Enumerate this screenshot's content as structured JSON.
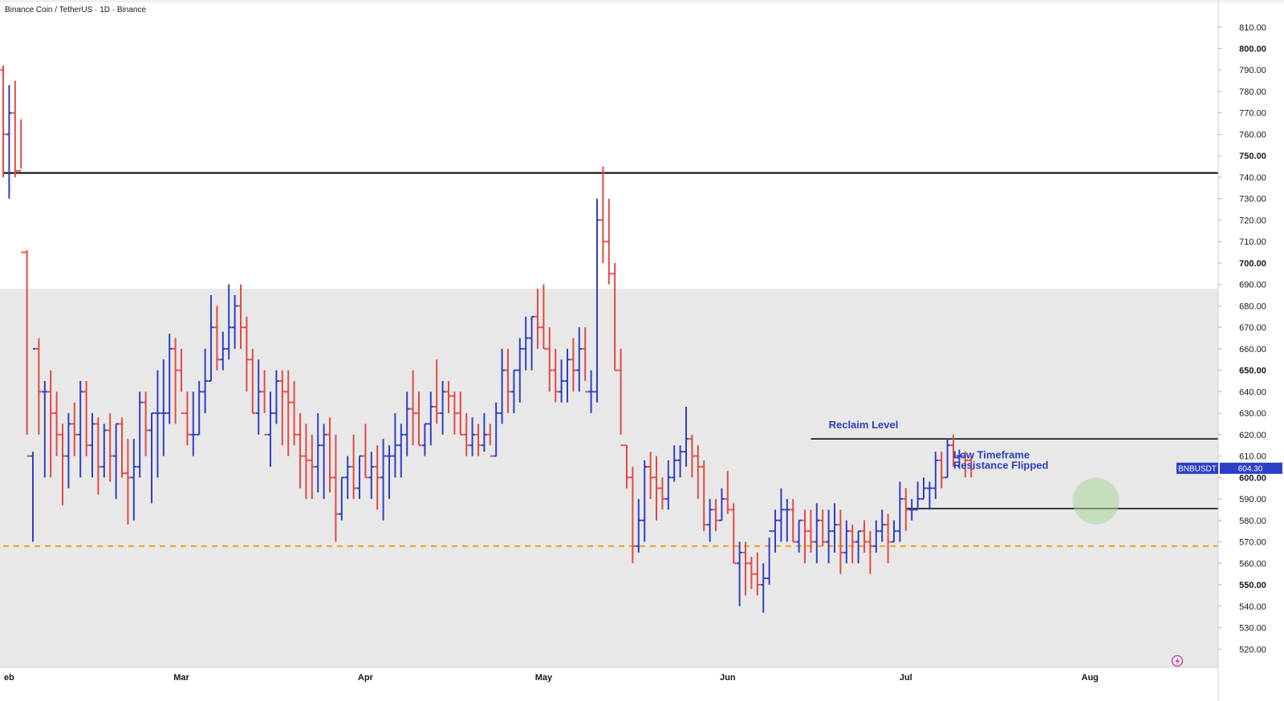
{
  "header": {
    "title": "Binance Coin / TetherUS · 1D · Binance"
  },
  "colors": {
    "up": "#2f3fc4",
    "down": "#e24a43",
    "zone": "#e8e8e8",
    "support": "#f0a020",
    "level": "#000000",
    "tag": "#2b3fc9",
    "highlight": "#a9d49a"
  },
  "icons": {
    "bottom_right": "lightning-icon"
  },
  "chart_data": {
    "type": "ohlc",
    "interval": "1D",
    "ylim": [
      511.5,
      821.5
    ],
    "y_ticks": [
      520,
      530,
      540,
      550,
      560,
      570,
      580,
      590,
      600,
      610,
      620,
      630,
      640,
      650,
      660,
      670,
      680,
      690,
      700,
      710,
      720,
      730,
      740,
      750,
      760,
      770,
      780,
      790,
      800,
      810
    ],
    "y_tick_labels": [
      "520.00",
      "530.00",
      "540.00",
      "550.00",
      "560.00",
      "570.00",
      "580.00",
      "590.00",
      "600.00",
      "610.00",
      "620.00",
      "630.00",
      "640.00",
      "650.00",
      "660.00",
      "670.00",
      "680.00",
      "690.00",
      "700.00",
      "710.00",
      "720.00",
      "730.00",
      "740.00",
      "750.00",
      "760.00",
      "770.00",
      "780.00",
      "790.00",
      "800.00",
      "810.00"
    ],
    "bold_ticks": [
      550,
      600,
      650,
      700,
      750,
      800
    ],
    "x_months": [
      {
        "label": "eb",
        "date": "2024-02-01"
      },
      {
        "label": "Mar",
        "date": "2024-03-01"
      },
      {
        "label": "Apr",
        "date": "2024-04-01"
      },
      {
        "label": "May",
        "date": "2024-05-01"
      },
      {
        "label": "Jun",
        "date": "2024-06-01"
      },
      {
        "label": "Jul",
        "date": "2024-07-01"
      },
      {
        "label": "Aug",
        "date": "2024-08-01"
      }
    ],
    "start_date": "2024-01-31",
    "bars": [
      [
        790,
        792,
        740,
        760
      ],
      [
        760,
        783,
        730,
        770
      ],
      [
        770,
        785,
        740,
        743
      ],
      [
        743,
        767,
        744,
        705
      ],
      [
        705,
        706,
        620,
        610
      ],
      [
        610,
        612,
        570,
        660
      ],
      [
        660,
        665,
        620,
        640
      ],
      [
        640,
        645,
        600,
        640
      ],
      [
        640,
        650,
        600,
        630
      ],
      [
        630,
        640,
        610,
        620
      ],
      [
        620,
        625,
        587,
        610
      ],
      [
        610,
        630,
        595,
        625
      ],
      [
        625,
        635,
        610,
        620
      ],
      [
        620,
        645,
        600,
        640
      ],
      [
        640,
        645,
        610,
        615
      ],
      [
        615,
        630,
        600,
        625
      ],
      [
        625,
        628,
        592,
        605
      ],
      [
        605,
        625,
        600,
        622
      ],
      [
        622,
        630,
        598,
        610
      ],
      [
        610,
        625,
        590,
        625
      ],
      [
        625,
        628,
        600,
        602
      ],
      [
        602,
        618,
        578,
        600
      ],
      [
        600,
        618,
        580,
        605
      ],
      [
        605,
        640,
        600,
        635
      ],
      [
        635,
        640,
        610,
        622
      ],
      [
        622,
        630,
        588,
        630
      ],
      [
        630,
        650,
        600,
        630
      ],
      [
        630,
        655,
        610,
        630
      ],
      [
        630,
        667,
        625,
        660
      ],
      [
        660,
        665,
        625,
        650
      ],
      [
        650,
        660,
        640,
        630
      ],
      [
        630,
        640,
        615,
        620
      ],
      [
        620,
        640,
        610,
        620
      ],
      [
        620,
        645,
        620,
        640
      ],
      [
        640,
        660,
        630,
        645
      ],
      [
        645,
        685,
        645,
        670
      ],
      [
        670,
        680,
        650,
        655
      ],
      [
        655,
        668,
        650,
        660
      ],
      [
        660,
        690,
        655,
        670
      ],
      [
        670,
        685,
        660,
        680
      ],
      [
        680,
        690,
        660,
        670
      ],
      [
        670,
        675,
        640,
        655
      ],
      [
        655,
        660,
        630,
        630
      ],
      [
        630,
        655,
        620,
        640
      ],
      [
        640,
        650,
        630,
        620
      ],
      [
        620,
        640,
        605,
        630
      ],
      [
        630,
        650,
        625,
        645
      ],
      [
        645,
        650,
        615,
        640
      ],
      [
        640,
        650,
        610,
        635
      ],
      [
        635,
        645,
        615,
        620
      ],
      [
        620,
        630,
        595,
        610
      ],
      [
        610,
        625,
        590,
        608
      ],
      [
        608,
        620,
        590,
        605
      ],
      [
        605,
        630,
        593,
        615
      ],
      [
        615,
        625,
        590,
        620
      ],
      [
        620,
        628,
        593,
        600
      ],
      [
        600,
        620,
        570,
        583
      ],
      [
        583,
        600,
        580,
        600
      ],
      [
        600,
        610,
        590,
        605
      ],
      [
        605,
        620,
        590,
        595
      ],
      [
        595,
        610,
        590,
        610
      ],
      [
        610,
        625,
        600,
        600
      ],
      [
        600,
        612,
        590,
        605
      ],
      [
        605,
        615,
        585,
        600
      ],
      [
        600,
        618,
        580,
        610
      ],
      [
        610,
        615,
        590,
        610
      ],
      [
        610,
        630,
        600,
        615
      ],
      [
        615,
        625,
        600,
        620
      ],
      [
        620,
        640,
        610,
        632
      ],
      [
        632,
        650,
        615,
        630
      ],
      [
        630,
        640,
        615,
        615
      ],
      [
        615,
        625,
        610,
        625
      ],
      [
        625,
        640,
        615,
        633
      ],
      [
        633,
        655,
        625,
        630
      ],
      [
        630,
        645,
        620,
        640
      ],
      [
        640,
        645,
        630,
        638
      ],
      [
        638,
        640,
        620,
        630
      ],
      [
        630,
        640,
        620,
        620
      ],
      [
        620,
        630,
        610,
        615
      ],
      [
        615,
        628,
        610,
        620
      ],
      [
        620,
        625,
        610,
        615
      ],
      [
        615,
        630,
        612,
        620
      ],
      [
        620,
        625,
        615,
        610
      ],
      [
        610,
        635,
        610,
        630
      ],
      [
        630,
        660,
        625,
        650
      ],
      [
        650,
        660,
        630,
        640
      ],
      [
        640,
        650,
        630,
        650
      ],
      [
        650,
        665,
        635,
        660
      ],
      [
        660,
        675,
        650,
        665
      ],
      [
        665,
        675,
        650,
        675
      ],
      [
        675,
        688,
        660,
        670
      ],
      [
        670,
        690,
        660,
        660
      ],
      [
        660,
        670,
        640,
        650
      ],
      [
        650,
        660,
        635,
        640
      ],
      [
        640,
        655,
        635,
        645
      ],
      [
        645,
        660,
        635,
        655
      ],
      [
        655,
        665,
        640,
        650
      ],
      [
        650,
        670,
        640,
        660
      ],
      [
        660,
        670,
        645,
        640
      ],
      [
        640,
        650,
        630,
        640
      ],
      [
        640,
        730,
        635,
        720
      ],
      [
        720,
        745,
        700,
        710
      ],
      [
        710,
        730,
        690,
        695
      ],
      [
        695,
        700,
        650,
        650
      ],
      [
        650,
        660,
        620,
        615
      ],
      [
        615,
        615,
        595,
        600
      ],
      [
        600,
        605,
        560,
        568
      ],
      [
        568,
        590,
        565,
        580
      ],
      [
        580,
        608,
        570,
        605
      ],
      [
        605,
        612,
        590,
        600
      ],
      [
        600,
        610,
        580,
        595
      ],
      [
        595,
        600,
        585,
        590
      ],
      [
        590,
        608,
        585,
        600
      ],
      [
        600,
        615,
        598,
        608
      ],
      [
        608,
        615,
        600,
        612
      ],
      [
        612,
        633,
        605,
        618
      ],
      [
        618,
        620,
        600,
        610
      ],
      [
        610,
        615,
        590,
        605
      ],
      [
        605,
        608,
        575,
        578
      ],
      [
        578,
        590,
        570,
        585
      ],
      [
        585,
        590,
        575,
        580
      ],
      [
        580,
        595,
        580,
        590
      ],
      [
        590,
        603,
        583,
        585
      ],
      [
        585,
        588,
        560,
        560
      ],
      [
        560,
        570,
        540,
        565
      ],
      [
        565,
        570,
        545,
        560
      ],
      [
        560,
        563,
        548,
        555
      ],
      [
        555,
        565,
        545,
        550
      ],
      [
        550,
        560,
        537,
        553
      ],
      [
        553,
        572,
        550,
        575
      ],
      [
        575,
        585,
        565,
        580
      ],
      [
        580,
        595,
        570,
        585
      ],
      [
        585,
        590,
        570,
        585
      ],
      [
        585,
        590,
        570,
        570
      ],
      [
        570,
        580,
        565,
        580
      ],
      [
        580,
        585,
        560,
        575
      ],
      [
        575,
        585,
        565,
        570
      ],
      [
        570,
        588,
        560,
        580
      ],
      [
        580,
        585,
        568,
        570
      ],
      [
        570,
        585,
        560,
        575
      ],
      [
        575,
        588,
        565,
        578
      ],
      [
        578,
        585,
        555,
        565
      ],
      [
        565,
        580,
        560,
        575
      ],
      [
        575,
        578,
        560,
        570
      ],
      [
        570,
        575,
        560,
        575
      ],
      [
        575,
        580,
        565,
        570
      ],
      [
        570,
        575,
        555,
        568
      ],
      [
        568,
        580,
        565,
        575
      ],
      [
        575,
        585,
        570,
        578
      ],
      [
        578,
        583,
        560,
        570
      ],
      [
        570,
        580,
        570,
        575
      ],
      [
        575,
        598,
        570,
        590
      ],
      [
        590,
        595,
        575,
        585
      ],
      [
        585,
        590,
        580,
        585
      ],
      [
        585,
        598,
        585,
        590
      ],
      [
        590,
        600,
        590,
        595
      ],
      [
        595,
        598,
        585,
        595
      ],
      [
        595,
        612,
        590,
        608
      ],
      [
        608,
        612,
        595,
        600
      ],
      [
        600,
        618,
        600,
        615
      ],
      [
        615,
        620,
        605,
        610
      ],
      [
        610,
        613,
        605,
        610
      ],
      [
        610,
        612,
        600,
        608
      ],
      [
        608,
        610,
        600,
        604
      ]
    ],
    "levels": [
      {
        "price": 742,
        "from": "2024-01-31",
        "to": "2024-08-26",
        "style": "solid"
      },
      {
        "price": 618,
        "from": "2024-06-15",
        "to": "2024-08-26",
        "style": "solid"
      },
      {
        "price": 585.5,
        "from": "2024-07-01",
        "to": "2024-08-26",
        "style": "solid"
      },
      {
        "price": 568,
        "from": "2024-01-31",
        "to": "2024-08-26",
        "style": "dashed"
      }
    ],
    "zone": {
      "from_price": 511.5,
      "to_price": 688
    },
    "annotations": [
      {
        "text": "Reclaim Level",
        "date": "2024-06-18",
        "price": 623
      },
      {
        "text": "Low Timeframe",
        "date": "2024-07-09",
        "price": 609
      },
      {
        "text": "Resistance Flipped",
        "date": "2024-07-09",
        "price": 604
      }
    ],
    "highlight": {
      "date": "2024-08-02",
      "price": 589
    },
    "last_price": {
      "symbol": "BNBUSDT",
      "value": "604.30",
      "price": 604.3
    }
  }
}
